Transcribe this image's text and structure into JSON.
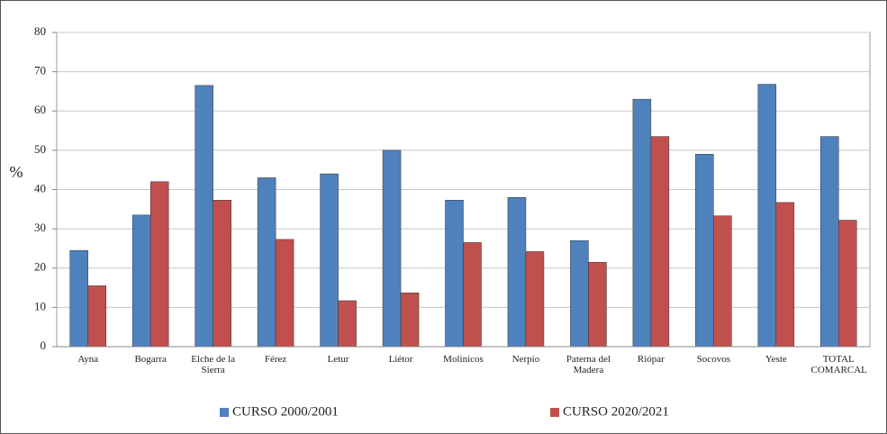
{
  "chart_data": {
    "type": "bar",
    "y_label": "%",
    "categories": [
      "Ayna",
      "Bogarra",
      "Elche de la Sierra",
      "Férez",
      "Letur",
      "Liétor",
      "Molinicos",
      "Nerpio",
      "Paterna del Madera",
      "Riópar",
      "Socovos",
      "Yeste",
      "TOTAL COMARCAL"
    ],
    "series": [
      {
        "name": "CURSO 2000/2001",
        "color": "#4f81bd",
        "values": [
          24.5,
          33.5,
          66.5,
          43,
          44,
          50,
          37.3,
          38,
          27,
          63,
          49,
          66.8,
          53.5
        ]
      },
      {
        "name": "CURSO 2020/2021",
        "color": "#c0504d",
        "values": [
          15.5,
          42,
          37.3,
          27.3,
          11.7,
          13.7,
          26.5,
          24.2,
          21.5,
          53.5,
          33.3,
          36.7,
          32.2
        ]
      }
    ],
    "ylim": [
      0,
      80
    ],
    "yticks": [
      0,
      10,
      20,
      30,
      40,
      50,
      60,
      70,
      80
    ],
    "grid": true
  }
}
